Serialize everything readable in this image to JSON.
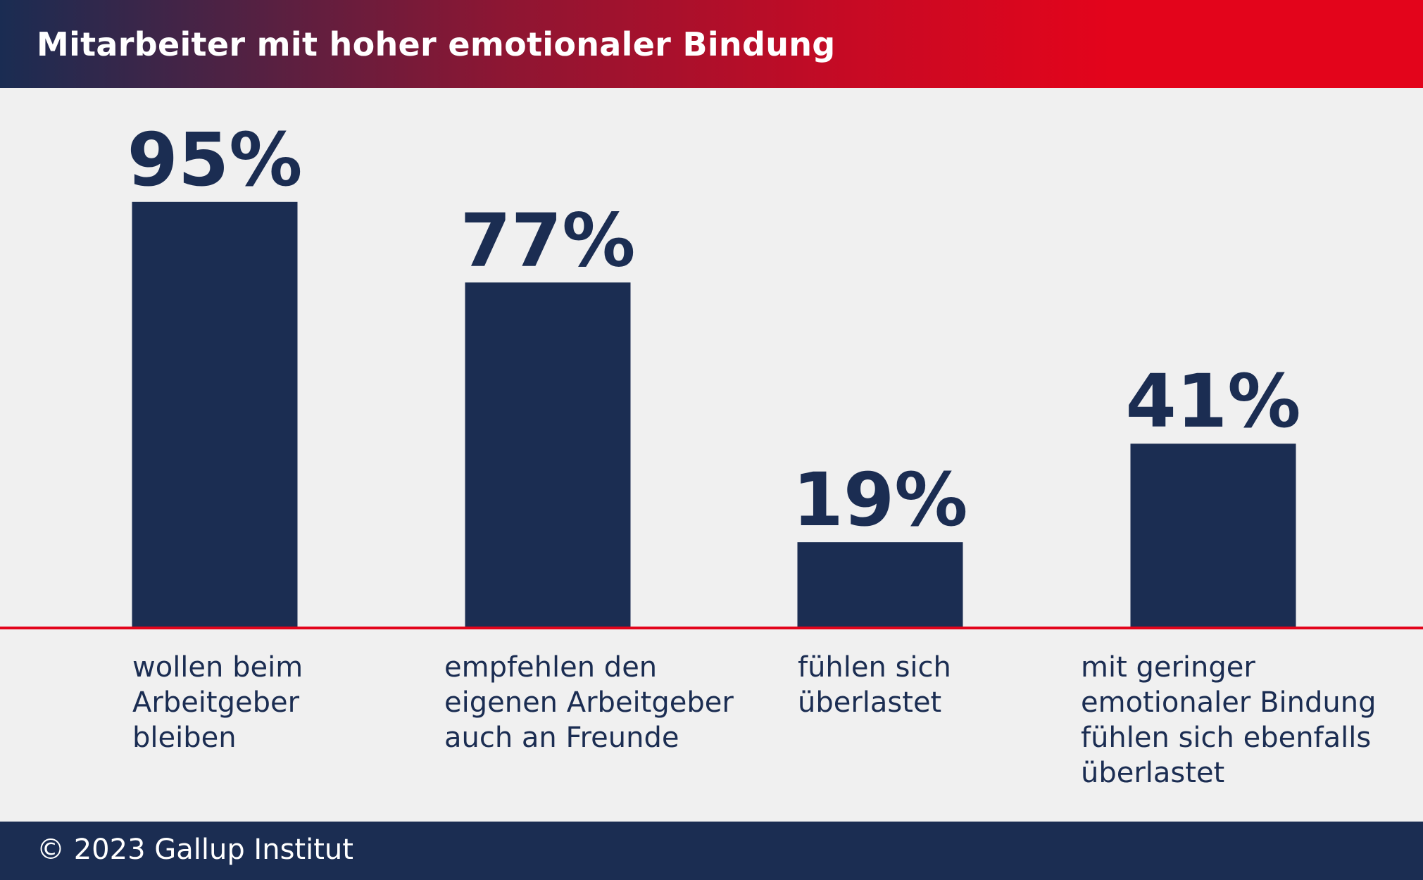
{
  "header": {
    "title": "Mitarbeiter mit hoher emotionaler Bindung"
  },
  "chart_data": {
    "type": "bar",
    "title": "Mitarbeiter mit hoher emotionaler Bindung",
    "categories": [
      "wollen beim Arbeitgeber bleiben",
      "empfehlen den eigenen Arbeitgeber auch an Freunde",
      "fühlen sich überlastet",
      "mit geringer emotionaler Bindung fühlen sich ebenfalls überlastet"
    ],
    "category_lines": [
      [
        "wollen beim",
        "Arbeitgeber",
        "bleiben"
      ],
      [
        "empfehlen den",
        "eigenen Arbeitgeber",
        "auch an Freunde"
      ],
      [
        "fühlen sich",
        "überlastet"
      ],
      [
        "mit geringer",
        "emotionaler Bindung",
        "fühlen sich ebenfalls",
        "überlastet"
      ]
    ],
    "values": [
      95,
      77,
      19,
      41
    ],
    "value_labels": [
      "95%",
      "77%",
      "19%",
      "41%"
    ],
    "unit": "%",
    "ylim": [
      0,
      100
    ],
    "grid": false,
    "colors": {
      "bar": "#1b2d52",
      "baseline": "#e3041b",
      "label": "#1b2d52"
    }
  },
  "footer": {
    "copyright": "© 2023 Gallup Institut"
  }
}
